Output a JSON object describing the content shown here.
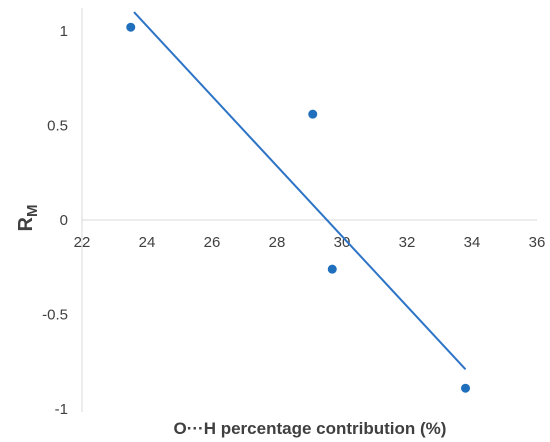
{
  "chart_data": {
    "type": "scatter",
    "xlabel": "O···H percentage contribution (%)",
    "ylabel": {
      "main": "R",
      "subscript": "M"
    },
    "xlim": [
      22,
      36
    ],
    "ylim": [
      -1,
      1.1
    ],
    "x_ticks": [
      "22",
      "24",
      "26",
      "28",
      "30",
      "32",
      "34",
      "36"
    ],
    "y_ticks": [
      "1",
      "0.5",
      "0",
      "-0.5",
      "-1"
    ],
    "series": [
      {
        "points": [
          {
            "x": 23.5,
            "y": 1.02
          },
          {
            "x": 29.1,
            "y": 0.56
          },
          {
            "x": 29.7,
            "y": -0.26
          },
          {
            "x": 33.8,
            "y": -0.89
          }
        ]
      }
    ],
    "trendline": {
      "x_start": 23.6,
      "y_start": 1.1,
      "x_end": 33.8,
      "y_end": -0.79
    },
    "grid": false,
    "colors": {
      "points": "#1f6fbd",
      "trendline": "#2d74c6",
      "axis": "#d9d9d9",
      "text": "#404040"
    }
  }
}
